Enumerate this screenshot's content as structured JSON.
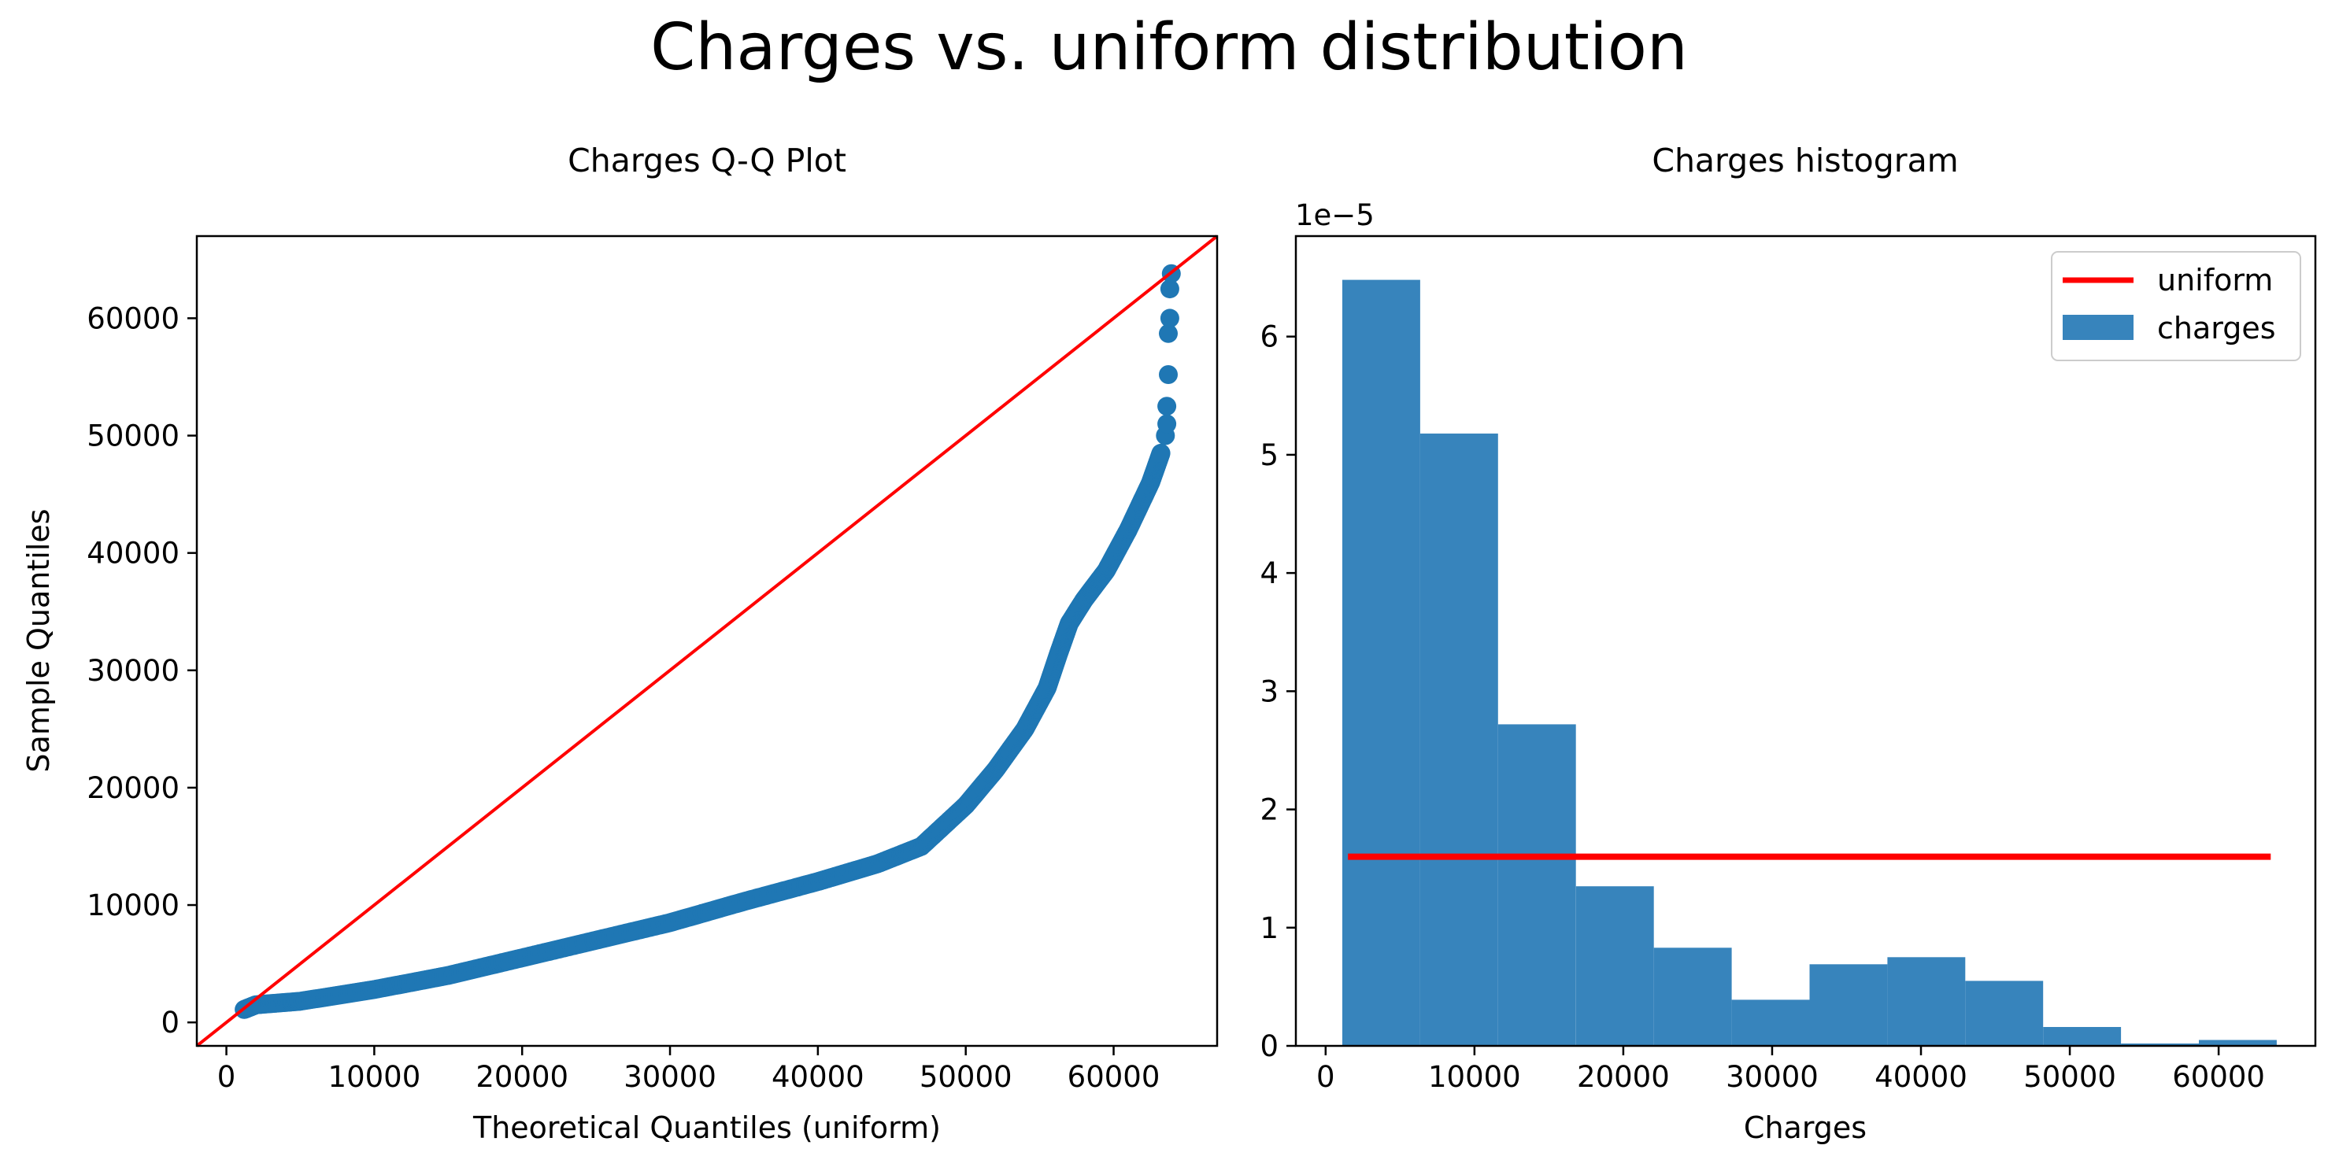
{
  "suptitle": "Charges vs. uniform distribution",
  "colors": {
    "points": "#1f77b4",
    "bars": "#3784bc",
    "reference_line": "#ff0000",
    "uniform_line": "#ff0000",
    "axes": "#000000",
    "background": "#ffffff"
  },
  "chart_data": [
    {
      "type": "scatter",
      "title": "Charges Q-Q Plot",
      "xlabel": "Theoretical Quantiles (uniform)",
      "ylabel": "Sample Quantiles",
      "xlim": [
        -2000,
        67000
      ],
      "ylim": [
        -2000,
        67000
      ],
      "xticks": [
        0,
        10000,
        20000,
        30000,
        40000,
        50000,
        60000
      ],
      "xtick_labels": [
        "0",
        "10000",
        "20000",
        "30000",
        "40000",
        "50000",
        "60000"
      ],
      "yticks": [
        0,
        10000,
        20000,
        30000,
        40000,
        50000,
        60000
      ],
      "ytick_labels": [
        "0",
        "10000",
        "20000",
        "30000",
        "40000",
        "50000",
        "60000"
      ],
      "grid": false,
      "reference_line": {
        "from": [
          -2000,
          -2000
        ],
        "to": [
          67000,
          67000
        ]
      },
      "curve_knots": [
        [
          1200,
          1100
        ],
        [
          2000,
          1500
        ],
        [
          5000,
          1800
        ],
        [
          10000,
          2800
        ],
        [
          15000,
          4000
        ],
        [
          20000,
          5500
        ],
        [
          25000,
          7000
        ],
        [
          30000,
          8500
        ],
        [
          35000,
          10300
        ],
        [
          40000,
          12000
        ],
        [
          44000,
          13500
        ],
        [
          47000,
          15000
        ],
        [
          50000,
          18500
        ],
        [
          52000,
          21500
        ],
        [
          54000,
          25000
        ],
        [
          55500,
          28500
        ],
        [
          56300,
          31500
        ],
        [
          57000,
          34000
        ],
        [
          58000,
          36000
        ],
        [
          59500,
          38500
        ],
        [
          61000,
          42000
        ],
        [
          62500,
          46000
        ],
        [
          63200,
          48500
        ]
      ],
      "outlier_points": [
        [
          63500,
          50000
        ],
        [
          63600,
          51000
        ],
        [
          63600,
          52500
        ],
        [
          63700,
          55200
        ],
        [
          63700,
          58700
        ],
        [
          63800,
          60000
        ],
        [
          63800,
          62500
        ],
        [
          63900,
          63800
        ]
      ]
    },
    {
      "type": "bar",
      "title": "Charges histogram",
      "xlabel": "Charges",
      "ylabel": "",
      "scale_label": "1e−5",
      "xlim": [
        -2000,
        66500
      ],
      "ylim": [
        0,
        6.85
      ],
      "xticks": [
        0,
        10000,
        20000,
        30000,
        40000,
        50000,
        60000
      ],
      "xtick_labels": [
        "0",
        "10000",
        "20000",
        "30000",
        "40000",
        "50000",
        "60000"
      ],
      "yticks": [
        0,
        1,
        2,
        3,
        4,
        5,
        6
      ],
      "ytick_labels": [
        "0",
        "1",
        "2",
        "3",
        "4",
        "5",
        "6"
      ],
      "grid": false,
      "bin_edges": [
        1122,
        6354,
        11586,
        16818,
        22050,
        27282,
        32514,
        37746,
        42978,
        48210,
        53442,
        58674,
        63906
      ],
      "values": [
        6.48,
        5.18,
        2.72,
        1.35,
        0.83,
        0.39,
        0.69,
        0.75,
        0.55,
        0.16,
        0.02,
        0.05
      ],
      "uniform_line": {
        "x": [
          1500,
          63500
        ],
        "y": 1.6
      },
      "legend": {
        "position": "upper right",
        "entries": [
          {
            "label": "uniform",
            "kind": "line"
          },
          {
            "label": "charges",
            "kind": "patch"
          }
        ]
      }
    }
  ]
}
